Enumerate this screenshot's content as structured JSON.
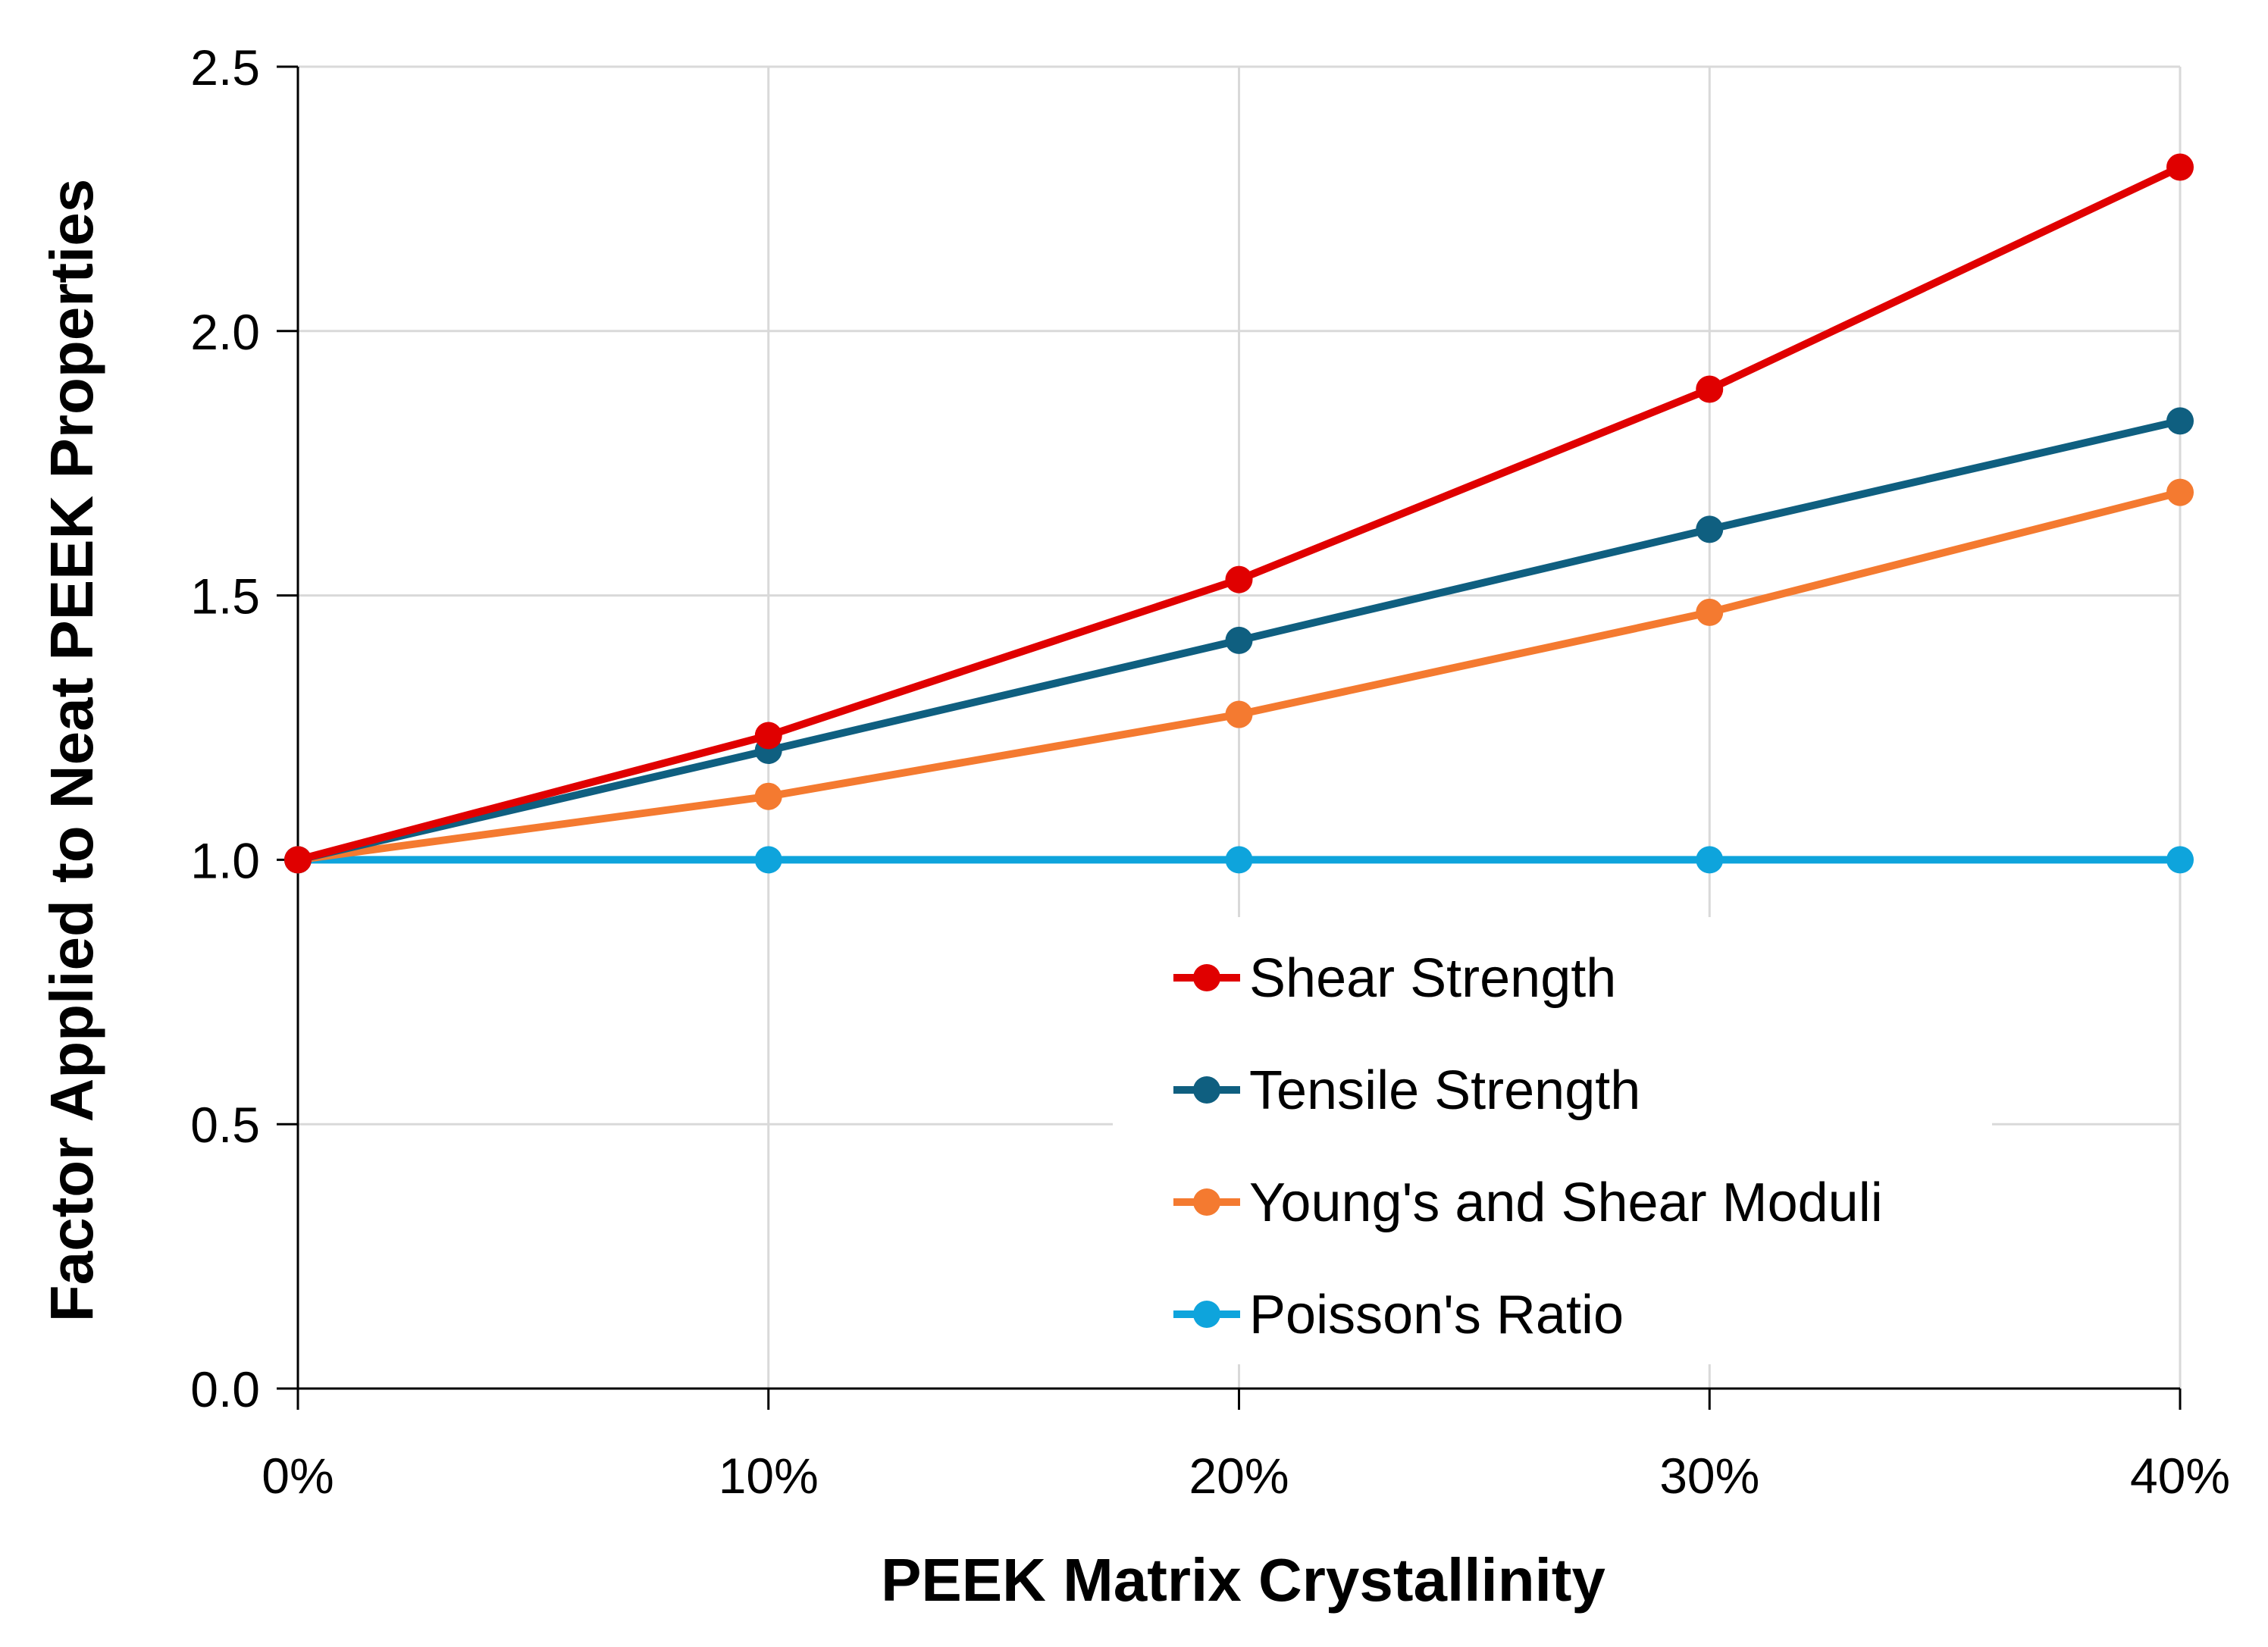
{
  "chart_data": {
    "type": "line",
    "title": "",
    "xlabel": "PEEK Matrix Crystallinity",
    "ylabel": "Factor Applied to Neat PEEK Properties",
    "categories": [
      "0%",
      "10%",
      "20%",
      "30%",
      "40%"
    ],
    "x": [
      0,
      10,
      20,
      30,
      40
    ],
    "xlim": [
      0,
      40
    ],
    "ylim": [
      0,
      2.5
    ],
    "yticks": [
      0.0,
      0.5,
      1.0,
      1.5,
      2.0,
      2.5
    ],
    "ytick_labels": [
      "0.0",
      "0.5",
      "1.0",
      "1.5",
      "2.0",
      "2.5"
    ],
    "grid": true,
    "legend_position": "center-right",
    "series": [
      {
        "name": "Shear Strength",
        "color": "#e00000",
        "values": [
          1.0,
          1.235,
          1.53,
          1.89,
          2.31
        ]
      },
      {
        "name": "Tensile Strength",
        "color": "#0f5f80",
        "values": [
          1.0,
          1.207,
          1.415,
          1.625,
          1.83
        ]
      },
      {
        "name": "Young's and Shear Moduli",
        "color": "#f47a30",
        "values": [
          1.0,
          1.12,
          1.275,
          1.468,
          1.695
        ]
      },
      {
        "name": "Poisson's Ratio",
        "color": "#0ea4dc",
        "values": [
          1.0,
          1.0,
          1.0,
          1.0,
          1.0
        ]
      }
    ]
  }
}
